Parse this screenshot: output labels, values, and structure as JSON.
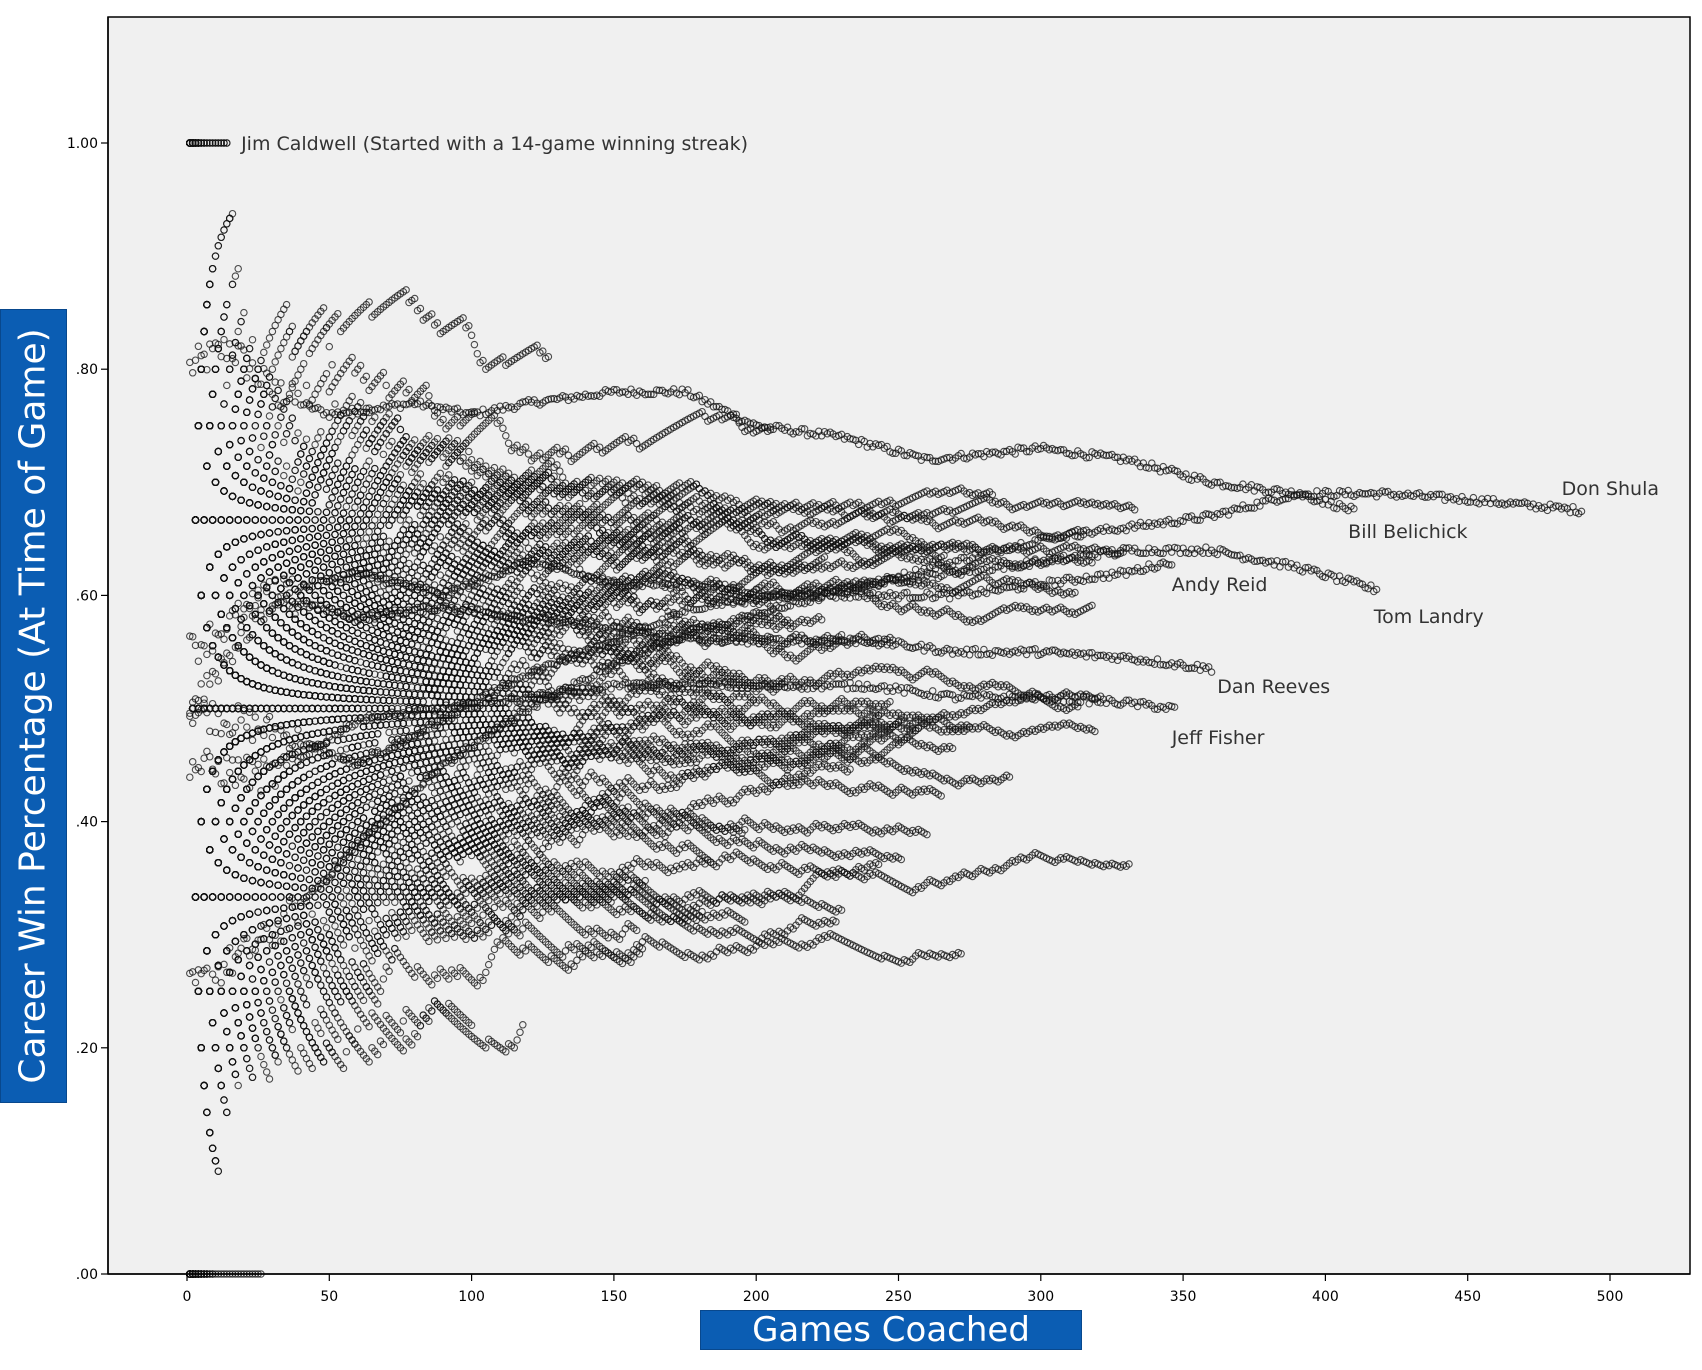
{
  "chart_data": {
    "type": "scatter",
    "title": "",
    "xlabel": "Games Coached",
    "ylabel": "Career Win Percentage (At Time of Game)",
    "xlim": [
      -27,
      525
    ],
    "ylim": [
      0,
      1.1
    ],
    "x_ticks": [
      0,
      50,
      100,
      150,
      200,
      250,
      300,
      350,
      400,
      450,
      500
    ],
    "x_tick_labels": [
      "0",
      "50",
      "100",
      "150",
      "200",
      "250",
      "300",
      "350",
      "400",
      "450",
      "500"
    ],
    "y_ticks": [
      0,
      0.2,
      0.4,
      0.6,
      0.8,
      1.0
    ],
    "y_tick_labels": [
      ".00",
      ".20",
      ".40",
      ".60",
      ".80",
      "1.00"
    ],
    "grid": false,
    "marker": "hollow-circle",
    "background": "#f0f0f0",
    "label_box_color": "#0b5db3",
    "annotations": [
      {
        "text": "Jim Caldwell (Started with a 14-game winning streak)",
        "x": 19,
        "y": 1.0
      },
      {
        "text": "Don Shula",
        "x": 483,
        "y": 0.695
      },
      {
        "text": "Bill Belichick",
        "x": 408,
        "y": 0.657
      },
      {
        "text": "Andy Reid",
        "x": 346,
        "y": 0.61
      },
      {
        "text": "Tom Landry",
        "x": 417,
        "y": 0.582
      },
      {
        "text": "Dan Reeves",
        "x": 362,
        "y": 0.52
      },
      {
        "text": "Jeff Fisher",
        "x": 346,
        "y": 0.475
      }
    ],
    "series": [
      {
        "name": "Don Shula",
        "x": [
          0,
          15,
          30,
          50,
          80,
          100,
          120,
          150,
          175,
          200,
          230,
          260,
          300,
          330,
          360,
          390,
          420,
          450,
          490
        ],
        "y": [
          0.8,
          0.82,
          0.78,
          0.76,
          0.77,
          0.76,
          0.77,
          0.78,
          0.78,
          0.75,
          0.74,
          0.72,
          0.73,
          0.72,
          0.7,
          0.69,
          0.69,
          0.685,
          0.675
        ]
      },
      {
        "name": "Bill Belichick",
        "x": [
          0,
          30,
          60,
          90,
          120,
          150,
          180,
          210,
          240,
          270,
          300,
          330,
          360,
          390,
          410
        ],
        "y": [
          0.5,
          0.48,
          0.45,
          0.49,
          0.53,
          0.56,
          0.59,
          0.6,
          0.61,
          0.63,
          0.65,
          0.66,
          0.67,
          0.69,
          0.675
        ]
      },
      {
        "name": "Tom Landry",
        "x": [
          0,
          30,
          60,
          90,
          120,
          150,
          180,
          210,
          240,
          270,
          300,
          330,
          360,
          390,
          418
        ],
        "y": [
          0.25,
          0.3,
          0.38,
          0.45,
          0.5,
          0.54,
          0.57,
          0.59,
          0.61,
          0.62,
          0.63,
          0.64,
          0.64,
          0.625,
          0.605
        ]
      },
      {
        "name": "Andy Reid",
        "x": [
          0,
          30,
          60,
          90,
          120,
          150,
          180,
          210,
          240,
          270,
          300,
          330,
          346
        ],
        "y": [
          0.5,
          0.6,
          0.62,
          0.6,
          0.63,
          0.61,
          0.61,
          0.6,
          0.6,
          0.6,
          0.61,
          0.62,
          0.63
        ]
      },
      {
        "name": "Dan Reeves",
        "x": [
          0,
          30,
          60,
          90,
          120,
          150,
          180,
          210,
          240,
          270,
          300,
          330,
          360
        ],
        "y": [
          0.55,
          0.6,
          0.58,
          0.59,
          0.58,
          0.57,
          0.56,
          0.56,
          0.56,
          0.55,
          0.55,
          0.545,
          0.535
        ]
      },
      {
        "name": "Jeff Fisher",
        "x": [
          0,
          30,
          60,
          90,
          120,
          150,
          180,
          210,
          240,
          270,
          300,
          330,
          347
        ],
        "y": [
          0.45,
          0.44,
          0.49,
          0.5,
          0.51,
          0.52,
          0.52,
          0.52,
          0.52,
          0.51,
          0.51,
          0.505,
          0.5
        ]
      }
    ]
  }
}
